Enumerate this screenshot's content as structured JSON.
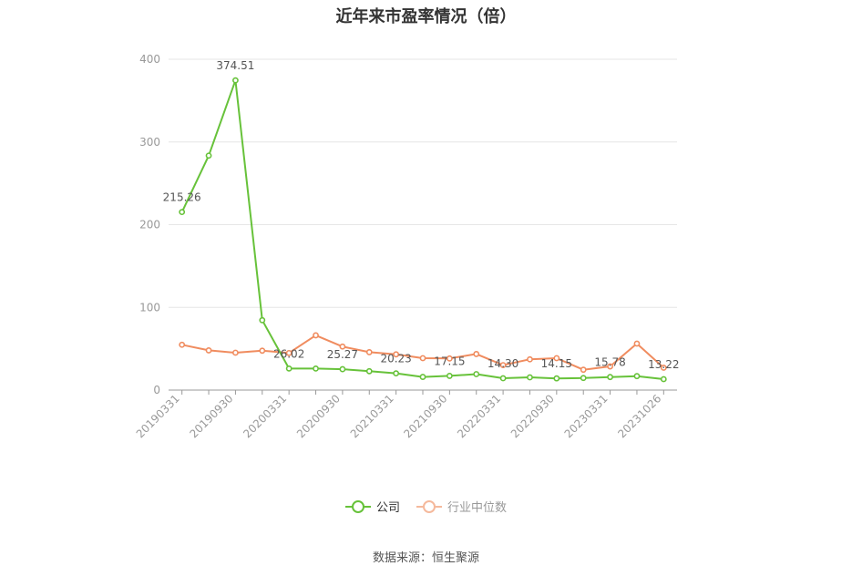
{
  "title": "近年来市盈率情况（倍）",
  "source": "数据来源：恒生聚源",
  "colors": {
    "company": "#67c23a",
    "industry": "#f08c5f",
    "grid": "#e6e6e6",
    "axis": "#999999",
    "label": "#555555"
  },
  "legend": {
    "company": "公司",
    "industry": "行业中位数"
  },
  "chart_data": {
    "type": "line",
    "title": "近年来市盈率情况（倍）",
    "xlabel": "",
    "ylabel": "",
    "ylim": [
      0,
      400
    ],
    "yticks": [
      0,
      100,
      200,
      300,
      400
    ],
    "grid": true,
    "legend_position": "bottom",
    "x": [
      "20190331",
      "20190630",
      "20190930",
      "20191231",
      "20200331",
      "20200630",
      "20200930",
      "20201231",
      "20210331",
      "20210630",
      "20210930",
      "20211231",
      "20220331",
      "20220630",
      "20220930",
      "20221231",
      "20230331",
      "20230630",
      "20231026"
    ],
    "x_tick_labels": [
      "20190331",
      "20190930",
      "20200331",
      "20200930",
      "20210331",
      "20210930",
      "20220331",
      "20220930",
      "20230331",
      "20231026"
    ],
    "series": [
      {
        "name": "公司",
        "values": [
          215.26,
          283.5,
          374.51,
          84.5,
          26.02,
          26.0,
          25.27,
          22.8,
          20.23,
          15.9,
          17.15,
          19.3,
          14.3,
          15.4,
          14.15,
          14.6,
          15.78,
          16.9,
          13.22
        ],
        "labels": [
          "215.26",
          "",
          "374.51",
          "",
          "26.02",
          "",
          "25.27",
          "",
          "20.23",
          "",
          "17.15",
          "",
          "14.30",
          "",
          "14.15",
          "",
          "15.78",
          "",
          "13.22"
        ]
      },
      {
        "name": "行业中位数",
        "values": [
          54.8,
          48.0,
          45.2,
          47.6,
          44.8,
          66.2,
          52.6,
          45.8,
          43.2,
          38.6,
          38.2,
          43.6,
          30.2,
          37.2,
          38.6,
          24.6,
          28.6,
          56.2,
          27.0
        ]
      }
    ]
  }
}
